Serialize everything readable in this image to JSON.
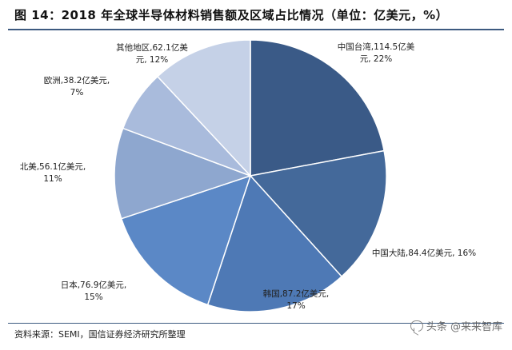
{
  "header": {
    "title": "图 14：2018 年全球半导体材料销售额及区域占比情况（单位：亿美元，%）"
  },
  "footer": {
    "source": "资料来源：SEMI，国信证券经济研究所整理"
  },
  "watermark": {
    "text": "头条 @来来智库"
  },
  "colors": [
    "#3a5a87",
    "#44699a",
    "#4e79b5",
    "#5b88c6",
    "#8ea7cf",
    "#a9bbdc",
    "#c5d1e7"
  ],
  "chart_data": {
    "type": "pie",
    "title": "2018 年全球半导体材料销售额及区域占比情况（单位：亿美元，%）",
    "unit": "亿美元",
    "slices": [
      {
        "label": "中国台湾",
        "value": 114.5,
        "percent": 22,
        "line1": "中国台湾,114.5亿美",
        "line2": "元, 22%"
      },
      {
        "label": "中国大陆",
        "value": 84.4,
        "percent": 16,
        "line1": "中国大陆,84.4亿美元, 16%",
        "line2": ""
      },
      {
        "label": "韩国",
        "value": 87.2,
        "percent": 17,
        "line1": "韩国,87.2亿美元,",
        "line2": "17%"
      },
      {
        "label": "日本",
        "value": 76.9,
        "percent": 15,
        "line1": "日本,76.9亿美元,",
        "line2": "15%"
      },
      {
        "label": "北美",
        "value": 56.1,
        "percent": 11,
        "line1": "北美,56.1亿美元,",
        "line2": "11%"
      },
      {
        "label": "欧洲",
        "value": 38.2,
        "percent": 7,
        "line1": "欧洲,38.2亿美元,",
        "line2": "7%"
      },
      {
        "label": "其他地区",
        "value": 62.1,
        "percent": 12,
        "line1": "其他地区,62.1亿美",
        "line2": "元, 12%"
      }
    ]
  }
}
